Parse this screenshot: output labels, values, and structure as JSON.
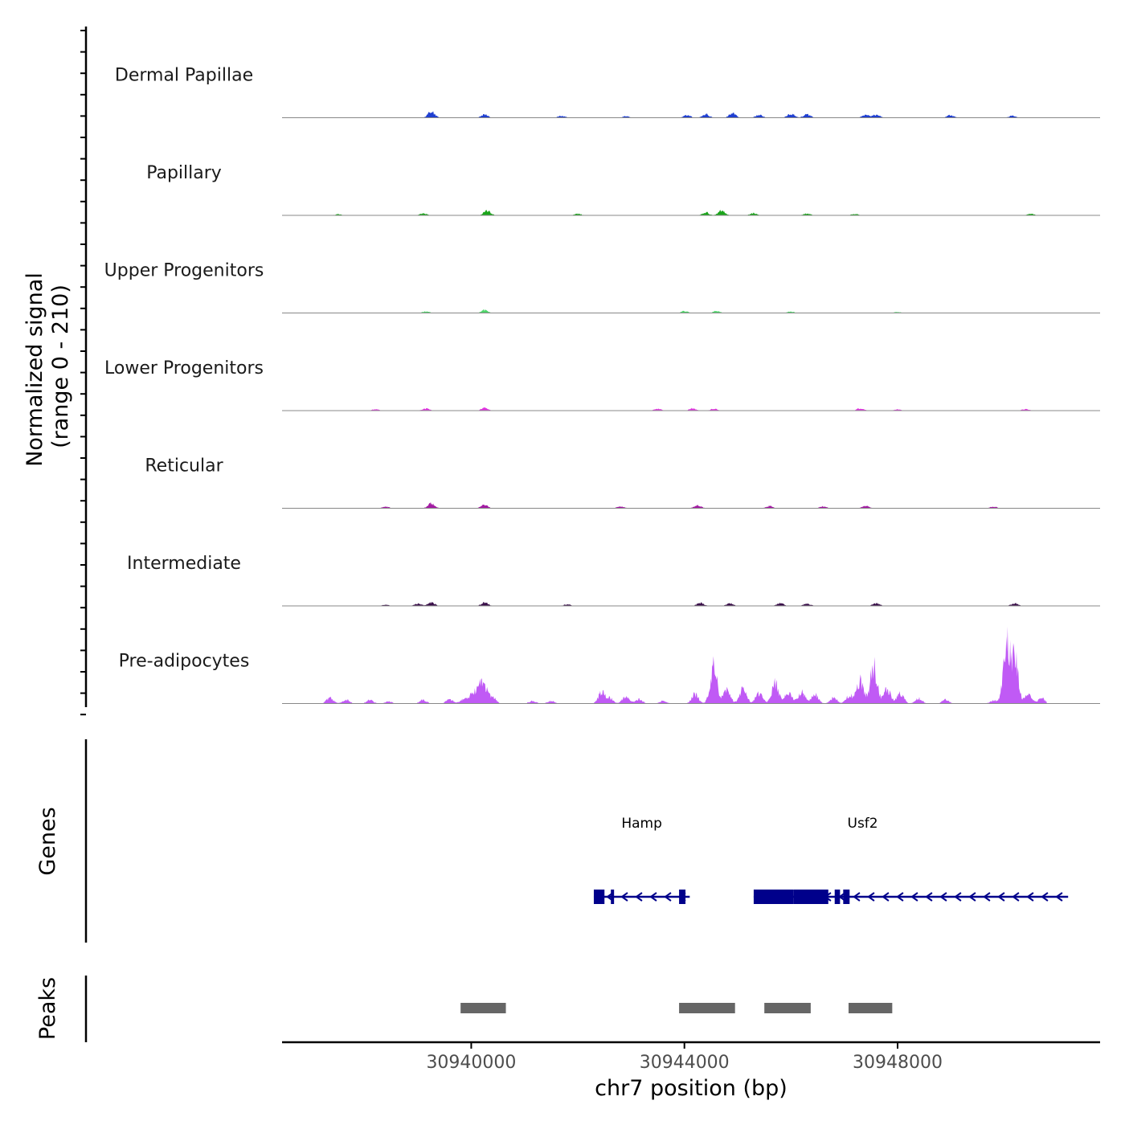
{
  "chart_data": {
    "type": "area",
    "y_axis_label_line1": "Normalized signal",
    "y_axis_label_line2": "(range 0 - 210)",
    "y_range": [
      0,
      210
    ],
    "xlabel": "chr7 position (bp)",
    "x_range": [
      30936450,
      30951800
    ],
    "x_ticks": [
      {
        "value": 30940000,
        "label": "30940000"
      },
      {
        "value": 30944000,
        "label": "30944000"
      },
      {
        "value": 30948000,
        "label": "30948000"
      }
    ],
    "signal_start": 30937200,
    "signal_end": 30950800,
    "tracks": [
      {
        "name": "Dermal Papillae",
        "color": "#1f3fd1",
        "peaks": [
          [
            30939250,
            16
          ],
          [
            30940250,
            8
          ],
          [
            30941700,
            5
          ],
          [
            30942900,
            4
          ],
          [
            30944050,
            7
          ],
          [
            30944400,
            10
          ],
          [
            30944900,
            12
          ],
          [
            30945400,
            8
          ],
          [
            30946000,
            11
          ],
          [
            30946300,
            9
          ],
          [
            30947400,
            7
          ],
          [
            30947600,
            9
          ],
          [
            30949000,
            7
          ],
          [
            30950150,
            5
          ]
        ]
      },
      {
        "name": "Papillary",
        "color": "#1aa51a",
        "peaks": [
          [
            30937500,
            3
          ],
          [
            30939100,
            5
          ],
          [
            30940300,
            13
          ],
          [
            30942000,
            4
          ],
          [
            30944400,
            8
          ],
          [
            30944700,
            12
          ],
          [
            30945300,
            6
          ],
          [
            30946300,
            5
          ],
          [
            30947200,
            4
          ],
          [
            30950500,
            4
          ]
        ]
      },
      {
        "name": "Upper Progenitors",
        "color": "#4fd56a",
        "peaks": [
          [
            30939150,
            4
          ],
          [
            30940250,
            8
          ],
          [
            30944000,
            5
          ],
          [
            30944600,
            5
          ],
          [
            30946000,
            4
          ],
          [
            30948000,
            3
          ]
        ]
      },
      {
        "name": "Lower Progenitors",
        "color": "#e033e0",
        "peaks": [
          [
            30938200,
            4
          ],
          [
            30939150,
            6
          ],
          [
            30940250,
            7
          ],
          [
            30943500,
            5
          ],
          [
            30944150,
            6
          ],
          [
            30944550,
            5
          ],
          [
            30947300,
            6
          ],
          [
            30948000,
            3
          ],
          [
            30950400,
            4
          ]
        ]
      },
      {
        "name": "Reticular",
        "color": "#a31ba3",
        "peaks": [
          [
            30938400,
            4
          ],
          [
            30939250,
            13
          ],
          [
            30940250,
            9
          ],
          [
            30942800,
            5
          ],
          [
            30944250,
            8
          ],
          [
            30945600,
            6
          ],
          [
            30946600,
            5
          ],
          [
            30947400,
            6
          ],
          [
            30949800,
            4
          ]
        ]
      },
      {
        "name": "Intermediate",
        "color": "#3a0f4a",
        "peaks": [
          [
            30938400,
            3
          ],
          [
            30939000,
            6
          ],
          [
            30939250,
            9
          ],
          [
            30940250,
            10
          ],
          [
            30941800,
            4
          ],
          [
            30944300,
            8
          ],
          [
            30944850,
            7
          ],
          [
            30945800,
            7
          ],
          [
            30946300,
            6
          ],
          [
            30947600,
            7
          ],
          [
            30950200,
            7
          ]
        ]
      },
      {
        "name": "Pre-adipocytes",
        "color": "#c05af5",
        "peaks": [
          [
            30937350,
            15
          ],
          [
            30937650,
            10
          ],
          [
            30938100,
            9
          ],
          [
            30938450,
            6
          ],
          [
            30939100,
            10
          ],
          [
            30939600,
            12
          ],
          [
            30939850,
            10
          ],
          [
            30940000,
            22
          ],
          [
            30940150,
            45
          ],
          [
            30940250,
            34
          ],
          [
            30940400,
            18
          ],
          [
            30941150,
            7
          ],
          [
            30941500,
            7
          ],
          [
            30942450,
            30
          ],
          [
            30942600,
            14
          ],
          [
            30942900,
            18
          ],
          [
            30943150,
            12
          ],
          [
            30943600,
            7
          ],
          [
            30944200,
            25
          ],
          [
            30944550,
            100
          ],
          [
            30944800,
            35
          ],
          [
            30945100,
            42
          ],
          [
            30945400,
            28
          ],
          [
            30945700,
            55
          ],
          [
            30945950,
            30
          ],
          [
            30946200,
            30
          ],
          [
            30946450,
            24
          ],
          [
            30946800,
            15
          ],
          [
            30947100,
            22
          ],
          [
            30947300,
            60
          ],
          [
            30947550,
            100
          ],
          [
            30947800,
            40
          ],
          [
            30948050,
            28
          ],
          [
            30948400,
            14
          ],
          [
            30948900,
            10
          ],
          [
            30949800,
            8
          ],
          [
            30950050,
            150
          ],
          [
            30950200,
            120
          ],
          [
            30950450,
            25
          ],
          [
            30950700,
            15
          ]
        ]
      }
    ],
    "genes_label": "Genes",
    "genes": [
      {
        "name": "Hamp",
        "start": 30942300,
        "end": 30944100,
        "strand": "-",
        "exons": [
          [
            30942300,
            30942500
          ],
          [
            30942620,
            30942680
          ],
          [
            30943900,
            30944020
          ]
        ]
      },
      {
        "name": "Usf2",
        "start": 30945300,
        "end": 30951200,
        "strand": "-",
        "exons": [
          [
            30945300,
            30946050
          ],
          [
            30946050,
            30946700
          ],
          [
            30946820,
            30946920
          ],
          [
            30946980,
            30947100
          ]
        ]
      }
    ],
    "peaks_label": "Peaks",
    "peak_regions": [
      [
        30939800,
        30940650
      ],
      [
        30943900,
        30944950
      ],
      [
        30945500,
        30946370
      ],
      [
        30947080,
        30947900
      ]
    ]
  }
}
